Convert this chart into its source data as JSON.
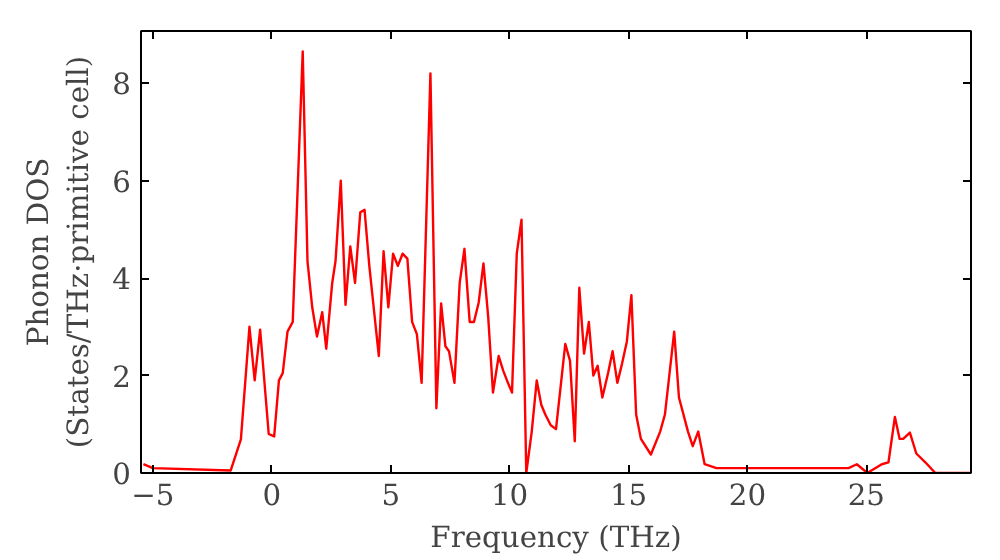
{
  "chart_data": {
    "type": "line",
    "xlabel": "Frequency (THz)",
    "ylabel": "Phonon DOS\n(States/THz·primitive cell)",
    "xlim": [
      -5.5,
      29.4
    ],
    "ylim": [
      0,
      9.07
    ],
    "xticks": [
      -5,
      0,
      5,
      10,
      15,
      20,
      25
    ],
    "yticks": [
      0,
      2,
      4,
      6,
      8
    ],
    "series": [
      {
        "color": "#ff0000",
        "x": [
          -5.4,
          -5.0,
          -1.73,
          -1.3,
          -0.94,
          -0.72,
          -0.49,
          -0.13,
          0.1,
          0.3,
          0.46,
          0.66,
          0.88,
          1.3,
          1.5,
          1.7,
          1.9,
          2.12,
          2.29,
          2.54,
          2.68,
          2.9,
          3.1,
          3.3,
          3.5,
          3.72,
          3.9,
          4.1,
          4.5,
          4.7,
          4.9,
          5.1,
          5.3,
          5.5,
          5.7,
          5.9,
          6.1,
          6.3,
          6.67,
          6.92,
          7.12,
          7.3,
          7.45,
          7.68,
          7.9,
          8.1,
          8.32,
          8.5,
          8.7,
          8.9,
          9.1,
          9.3,
          9.54,
          9.73,
          9.93,
          10.1,
          10.3,
          10.5,
          10.7,
          10.93,
          11.14,
          11.33,
          11.5,
          11.73,
          11.95,
          12.34,
          12.54,
          12.74,
          12.93,
          13.13,
          13.33,
          13.52,
          13.7,
          13.9,
          14.14,
          14.33,
          14.53,
          14.73,
          14.93,
          15.12,
          15.32,
          15.52,
          15.94,
          16.33,
          16.53,
          16.92,
          17.12,
          17.5,
          17.7,
          17.93,
          18.2,
          18.7,
          24.25,
          24.6,
          25.04,
          25.65,
          25.93,
          26.2,
          26.4,
          26.55,
          26.83,
          27.1,
          27.48,
          27.9,
          29.4
        ],
        "values": [
          0.18,
          0.1,
          0.05,
          0.69,
          3.0,
          1.9,
          2.94,
          0.8,
          0.75,
          1.9,
          2.05,
          2.9,
          3.1,
          8.65,
          4.35,
          3.4,
          2.8,
          3.3,
          2.55,
          3.9,
          4.35,
          6.0,
          3.45,
          4.65,
          3.9,
          5.35,
          5.4,
          4.25,
          2.4,
          4.55,
          3.4,
          4.5,
          4.25,
          4.5,
          4.4,
          3.1,
          2.85,
          1.85,
          8.2,
          1.33,
          3.48,
          2.6,
          2.5,
          1.85,
          3.9,
          4.6,
          3.1,
          3.1,
          3.5,
          4.3,
          3.2,
          1.65,
          2.4,
          2.1,
          1.85,
          1.65,
          4.5,
          5.2,
          0.0,
          0.85,
          1.9,
          1.4,
          1.2,
          0.98,
          0.9,
          2.65,
          2.3,
          0.65,
          3.8,
          2.45,
          3.1,
          2.0,
          2.2,
          1.55,
          2.05,
          2.5,
          1.85,
          2.25,
          2.7,
          3.65,
          1.2,
          0.7,
          0.38,
          0.85,
          1.2,
          2.9,
          1.55,
          0.85,
          0.55,
          0.85,
          0.18,
          0.1,
          0.1,
          0.18,
          0.0,
          0.18,
          0.22,
          1.15,
          0.7,
          0.7,
          0.83,
          0.4,
          0.22,
          0.0,
          0.0
        ]
      }
    ]
  }
}
